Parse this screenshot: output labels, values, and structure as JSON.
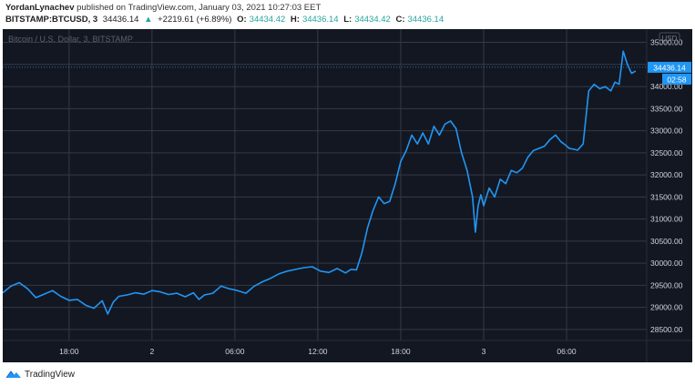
{
  "header": {
    "author": "YordanLynachev",
    "published_text": "published on TradingView.com, January 03, 2021 10:27:03 EET",
    "symbol": "BITSTAMP:BTCUSD, 3",
    "last_price": "34436.14",
    "change_arrow": "▲",
    "change": "+2219.61 (+6.89%)",
    "o_label": "O:",
    "o_value": "34434.42",
    "h_label": "H:",
    "h_value": "34436.14",
    "l_label": "L:",
    "l_value": "34434.42",
    "c_label": "C:",
    "c_value": "34436.14"
  },
  "footer": {
    "brand": "TradingView",
    "logo_icon": "tradingview-logo-icon"
  },
  "colors": {
    "background": "#131722",
    "line": "#2196f3",
    "grid": "#363a45",
    "axis_text": "#d1d4dc",
    "positive": "#26a69a"
  },
  "chart_data": {
    "type": "line",
    "title": "Bitcoin / U.S. Dollar, 3, BITSTAMP",
    "currency_label": "USD",
    "price_tag": "34436.14",
    "countdown_tag": "02:58",
    "ylim": [
      28250,
      35300
    ],
    "y_ticks": [
      28500,
      29000,
      29500,
      30000,
      30500,
      31000,
      31500,
      32000,
      32500,
      33000,
      33500,
      34000,
      34500,
      35000
    ],
    "y_tick_labels": [
      "28500.00",
      "29000.00",
      "29500.00",
      "30000.00",
      "30500.00",
      "31000.00",
      "31500.00",
      "32000.00",
      "32500.00",
      "33000.00",
      "33500.00",
      "34000.00",
      "34500.00",
      "35000.00"
    ],
    "x_label_note": "hours since Jan 1 00:00 (session-relative)",
    "xlim": [
      13.2,
      59.8
    ],
    "x_ticks": [
      18,
      24,
      30,
      36,
      42,
      48,
      54
    ],
    "x_tick_labels": [
      "18:00",
      "2",
      "06:00",
      "12:00",
      "18:00",
      "3",
      "06:00"
    ],
    "grid": true,
    "series": [
      {
        "name": "BTCUSD",
        "x": [
          13.2,
          13.8,
          14.4,
          15.0,
          15.6,
          16.2,
          16.8,
          17.4,
          18.0,
          18.6,
          19.2,
          19.8,
          20.4,
          20.8,
          21.2,
          21.6,
          22.2,
          22.8,
          23.4,
          24.0,
          24.6,
          25.2,
          25.8,
          26.4,
          27.0,
          27.4,
          27.8,
          28.4,
          29.0,
          29.6,
          30.2,
          30.8,
          31.4,
          32.0,
          32.6,
          33.2,
          33.8,
          34.4,
          35.0,
          35.6,
          36.2,
          36.8,
          37.4,
          38.0,
          38.4,
          38.8,
          39.2,
          39.6,
          40.0,
          40.4,
          40.8,
          41.2,
          41.6,
          42.0,
          42.4,
          42.8,
          43.2,
          43.6,
          44.0,
          44.4,
          44.8,
          45.2,
          45.6,
          46.0,
          46.4,
          46.8,
          47.2,
          47.4,
          47.6,
          47.8,
          48.0,
          48.4,
          48.8,
          49.2,
          49.6,
          50.0,
          50.4,
          50.8,
          51.2,
          51.6,
          52.0,
          52.4,
          52.8,
          53.2,
          53.6,
          53.9,
          54.2,
          54.5,
          54.8,
          55.2,
          55.6,
          56.0,
          56.4,
          56.8,
          57.2,
          57.5,
          57.8,
          58.1,
          58.4,
          58.7,
          59.0
        ],
        "values": [
          29330,
          29480,
          29560,
          29420,
          29220,
          29300,
          29380,
          29250,
          29160,
          29180,
          29050,
          28980,
          29150,
          28850,
          29120,
          29250,
          29280,
          29330,
          29300,
          29380,
          29350,
          29290,
          29320,
          29240,
          29330,
          29180,
          29280,
          29320,
          29480,
          29420,
          29380,
          29320,
          29480,
          29580,
          29660,
          29760,
          29820,
          29860,
          29900,
          29920,
          29820,
          29790,
          29880,
          29780,
          29860,
          29850,
          30250,
          30800,
          31200,
          31500,
          31350,
          31400,
          31800,
          32300,
          32550,
          32900,
          32700,
          32950,
          32700,
          33100,
          32900,
          33150,
          33220,
          33050,
          32500,
          32100,
          31500,
          30700,
          31300,
          31550,
          31300,
          31700,
          31500,
          31900,
          31800,
          32100,
          32050,
          32150,
          32400,
          32550,
          32600,
          32650,
          32800,
          32900,
          32750,
          32680,
          32600,
          32580,
          32560,
          32700,
          33900,
          34050,
          33950,
          34000,
          33900,
          34100,
          34050,
          34800,
          34500,
          34300,
          34350
        ]
      }
    ]
  }
}
